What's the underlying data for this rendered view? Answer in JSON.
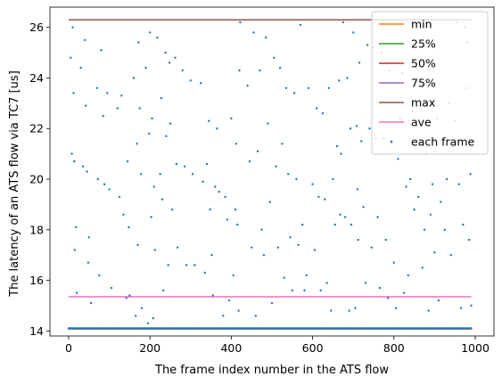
{
  "chart_data": {
    "type": "line",
    "title": "",
    "xlabel": "The frame index number in the ATS flow",
    "ylabel": "The latency of an ATS flow via TC7 [us]",
    "xlim": [
      -46,
      1046
    ],
    "ylim": [
      13.8,
      26.8
    ],
    "x_ticks": [
      0,
      200,
      400,
      600,
      800,
      1000
    ],
    "y_ticks": [
      14,
      16,
      18,
      20,
      22,
      24,
      26
    ],
    "grid": false,
    "legend_position": "top-right",
    "series": [
      {
        "name": "min",
        "kind": "line",
        "color": "#ff7f0e",
        "x": [
          0,
          990
        ],
        "y": [
          14.08,
          14.08
        ]
      },
      {
        "name": "25%",
        "kind": "line",
        "color": "#2ca02c",
        "x": [
          0,
          990
        ],
        "y": [
          14.09,
          14.09
        ]
      },
      {
        "name": "50%",
        "kind": "line",
        "color": "#d62728",
        "x": [
          0,
          990
        ],
        "y": [
          14.1,
          14.1
        ]
      },
      {
        "name": "75%",
        "kind": "line",
        "color": "#9467bd",
        "x": [
          0,
          990
        ],
        "y": [
          14.11,
          14.11
        ]
      },
      {
        "name": "max",
        "kind": "line",
        "color": "#8c564b",
        "x": [
          0,
          990
        ],
        "y": [
          26.3,
          26.3
        ]
      },
      {
        "name": "ave",
        "kind": "line",
        "color": "#e377c2",
        "x": [
          0,
          990
        ],
        "y": [
          15.35,
          15.35
        ]
      },
      {
        "name": "each frame",
        "kind": "scatter",
        "color": "#1f77b4",
        "baseline": {
          "x_start": 0,
          "x_end": 990,
          "step": 2,
          "y": 14.1
        },
        "points": [
          [
            5,
            24.8
          ],
          [
            8,
            21.0
          ],
          [
            10,
            26.0
          ],
          [
            12,
            23.4
          ],
          [
            14,
            20.7
          ],
          [
            15,
            17.2
          ],
          [
            18,
            18.1
          ],
          [
            20,
            15.5
          ],
          [
            30,
            24.4
          ],
          [
            35,
            20.5
          ],
          [
            40,
            25.5
          ],
          [
            42,
            22.9
          ],
          [
            45,
            20.3
          ],
          [
            48,
            16.7
          ],
          [
            50,
            17.7
          ],
          [
            55,
            15.1
          ],
          [
            70,
            23.6
          ],
          [
            72,
            20.0
          ],
          [
            75,
            16.2
          ],
          [
            80,
            25.1
          ],
          [
            85,
            22.5
          ],
          [
            88,
            19.8
          ],
          [
            95,
            23.4
          ],
          [
            100,
            19.6
          ],
          [
            105,
            15.7
          ],
          [
            120,
            22.8
          ],
          [
            125,
            19.3
          ],
          [
            130,
            23.3
          ],
          [
            135,
            18.6
          ],
          [
            142,
            15.3
          ],
          [
            145,
            20.7
          ],
          [
            148,
            18.1
          ],
          [
            150,
            15.4
          ],
          [
            160,
            24.0
          ],
          [
            165,
            14.6
          ],
          [
            168,
            21.4
          ],
          [
            170,
            17.4
          ],
          [
            172,
            25.4
          ],
          [
            175,
            22.8
          ],
          [
            178,
            20.2
          ],
          [
            180,
            14.9
          ],
          [
            190,
            24.4
          ],
          [
            195,
            14.3
          ],
          [
            198,
            21.8
          ],
          [
            200,
            25.8
          ],
          [
            203,
            18.5
          ],
          [
            205,
            22.4
          ],
          [
            208,
            14.5
          ],
          [
            210,
            19.7
          ],
          [
            212,
            17.2
          ],
          [
            218,
            25.6
          ],
          [
            225,
            20.2
          ],
          [
            228,
            23.2
          ],
          [
            230,
            19.2
          ],
          [
            233,
            15.6
          ],
          [
            238,
            25.0
          ],
          [
            240,
            21.7
          ],
          [
            245,
            16.6
          ],
          [
            248,
            24.6
          ],
          [
            250,
            22.2
          ],
          [
            255,
            18.8
          ],
          [
            262,
            24.8
          ],
          [
            265,
            20.6
          ],
          [
            268,
            17.3
          ],
          [
            280,
            24.3
          ],
          [
            285,
            20.5
          ],
          [
            290,
            16.6
          ],
          [
            300,
            23.9
          ],
          [
            305,
            20.2
          ],
          [
            310,
            16.6
          ],
          [
            325,
            23.8
          ],
          [
            330,
            19.9
          ],
          [
            335,
            16.3
          ],
          [
            340,
            20.6
          ],
          [
            345,
            22.3
          ],
          [
            348,
            18.8
          ],
          [
            352,
            17.0
          ],
          [
            355,
            15.4
          ],
          [
            360,
            19.7
          ],
          [
            365,
            22.0
          ],
          [
            370,
            19.5
          ],
          [
            380,
            14.6
          ],
          [
            385,
            19.3
          ],
          [
            390,
            18.4
          ],
          [
            395,
            15.2
          ],
          [
            400,
            22.4
          ],
          [
            405,
            16.2
          ],
          [
            410,
            18.8
          ],
          [
            412,
            21.4
          ],
          [
            415,
            18.2
          ],
          [
            418,
            14.8
          ],
          [
            420,
            24.3
          ],
          [
            422,
            26.2
          ],
          [
            440,
            23.7
          ],
          [
            445,
            20.7
          ],
          [
            450,
            17.3
          ],
          [
            455,
            25.8
          ],
          [
            460,
            14.6
          ],
          [
            465,
            21.1
          ],
          [
            470,
            24.3
          ],
          [
            475,
            18.0
          ],
          [
            480,
            17.0
          ],
          [
            485,
            25.6
          ],
          [
            490,
            22.2
          ],
          [
            495,
            19.1
          ],
          [
            500,
            15.1
          ],
          [
            505,
            24.8
          ],
          [
            510,
            20.5
          ],
          [
            515,
            17.3
          ],
          [
            520,
            24.4
          ],
          [
            525,
            21.4
          ],
          [
            530,
            16.1
          ],
          [
            535,
            23.6
          ],
          [
            540,
            20.2
          ],
          [
            545,
            17.7
          ],
          [
            550,
            15.6
          ],
          [
            555,
            23.4
          ],
          [
            560,
            20.0
          ],
          [
            565,
            17.4
          ],
          [
            570,
            26.1
          ],
          [
            575,
            18.2
          ],
          [
            580,
            15.6
          ],
          [
            585,
            16.2
          ],
          [
            590,
            23.6
          ],
          [
            600,
            19.8
          ],
          [
            605,
            17.2
          ],
          [
            610,
            22.8
          ],
          [
            615,
            19.3
          ],
          [
            620,
            15.6
          ],
          [
            625,
            22.6
          ],
          [
            630,
            19.2
          ],
          [
            635,
            15.9
          ],
          [
            640,
            23.6
          ],
          [
            645,
            14.8
          ],
          [
            650,
            20.0
          ],
          [
            655,
            18.2
          ],
          [
            660,
            21.3
          ],
          [
            665,
            23.9
          ],
          [
            668,
            18.6
          ],
          [
            670,
            21.0
          ],
          [
            675,
            26.2
          ],
          [
            680,
            18.5
          ],
          [
            685,
            24.0
          ],
          [
            690,
            14.8
          ],
          [
            693,
            22.0
          ],
          [
            695,
            18.2
          ],
          [
            700,
            25.8
          ],
          [
            705,
            14.9
          ],
          [
            708,
            22.1
          ],
          [
            710,
            19.6
          ],
          [
            712,
            17.6
          ],
          [
            715,
            24.6
          ],
          [
            720,
            21.5
          ],
          [
            725,
            18.9
          ],
          [
            730,
            15.9
          ],
          [
            735,
            25.3
          ],
          [
            740,
            22.0
          ],
          [
            745,
            17.3
          ],
          [
            750,
            25.2
          ],
          [
            755,
            21.6
          ],
          [
            760,
            18.5
          ],
          [
            765,
            15.7
          ],
          [
            770,
            25.0
          ],
          [
            775,
            21.6
          ],
          [
            780,
            17.6
          ],
          [
            785,
            15.3
          ],
          [
            790,
            24.3
          ],
          [
            795,
            21.4
          ],
          [
            800,
            16.7
          ],
          [
            805,
            14.9
          ],
          [
            810,
            20.8
          ],
          [
            815,
            22.4
          ],
          [
            820,
            24.2
          ],
          [
            825,
            15.5
          ],
          [
            830,
            19.7
          ],
          [
            835,
            16.2
          ],
          [
            840,
            20.0
          ],
          [
            845,
            22.7
          ],
          [
            850,
            18.8
          ],
          [
            855,
            24.4
          ],
          [
            860,
            19.3
          ],
          [
            865,
            21.4
          ],
          [
            870,
            16.5
          ],
          [
            875,
            18.0
          ],
          [
            880,
            21.0
          ],
          [
            885,
            14.8
          ],
          [
            890,
            18.6
          ],
          [
            895,
            19.8
          ],
          [
            900,
            17.1
          ],
          [
            905,
            22.4
          ],
          [
            910,
            15.2
          ],
          [
            915,
            19.1
          ],
          [
            920,
            21.6
          ],
          [
            925,
            18.0
          ],
          [
            930,
            20.0
          ],
          [
            935,
            23.0
          ],
          [
            940,
            17.0
          ],
          [
            945,
            21.3
          ],
          [
            950,
            22.3
          ],
          [
            955,
            26.2
          ],
          [
            960,
            19.8
          ],
          [
            965,
            14.9
          ],
          [
            970,
            18.2
          ],
          [
            975,
            26.0
          ],
          [
            978,
            23.6
          ],
          [
            980,
            25.4
          ],
          [
            985,
            17.6
          ],
          [
            988,
            20.2
          ],
          [
            990,
            15.0
          ]
        ]
      }
    ]
  }
}
